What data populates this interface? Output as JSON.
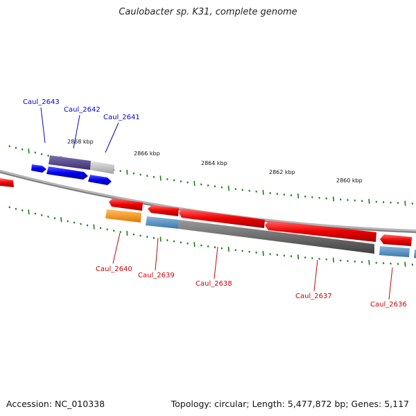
{
  "title": "Caulobacter sp. K31, complete genome",
  "footer": {
    "accession": "Accession: NC_010338",
    "summary": "Topology: circular; Length: 5,477,872 bp; Genes: 5,117"
  },
  "colors": {
    "forward_label": "#0000cc",
    "reverse_label": "#cc0000",
    "tick": "#1a7a1a",
    "backbone": "#8c8c8c"
  },
  "scale_labels": [
    "2868 kbp",
    "2866 kbp",
    "2864 kbp",
    "2862 kbp",
    "2860 kbp"
  ],
  "genes": [
    {
      "name": "Caul_2643",
      "strand": "+"
    },
    {
      "name": "Caul_2642",
      "strand": "+"
    },
    {
      "name": "Caul_2641",
      "strand": "+"
    },
    {
      "name": "Caul_2640",
      "strand": "-"
    },
    {
      "name": "Caul_2639",
      "strand": "-"
    },
    {
      "name": "Caul_2638",
      "strand": "-"
    },
    {
      "name": "Caul_2637",
      "strand": "-"
    },
    {
      "name": "Caul_2636",
      "strand": "-"
    }
  ]
}
